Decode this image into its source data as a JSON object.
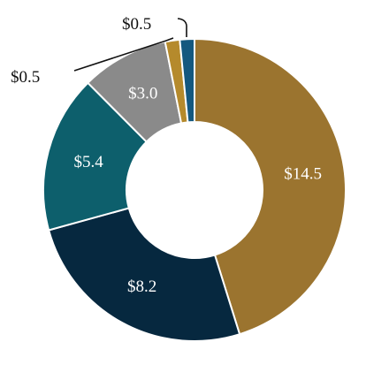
{
  "chart_data": {
    "type": "pie",
    "donut": true,
    "categories": [
      "$14.5",
      "$8.2",
      "$5.4",
      "$3.0",
      "$0.5",
      "$0.5"
    ],
    "values": [
      14.5,
      8.2,
      5.4,
      3.0,
      0.5,
      0.5
    ],
    "data_labels": [
      "$14.5",
      "$8.2",
      "$5.4",
      "$3.0",
      "$0.5",
      "$0.5"
    ],
    "colors": [
      "#9b742f",
      "#06283f",
      "#0d5f6c",
      "#8a8a8a",
      "#b58a2c",
      "#14587f"
    ],
    "title": "",
    "legend": "none"
  }
}
